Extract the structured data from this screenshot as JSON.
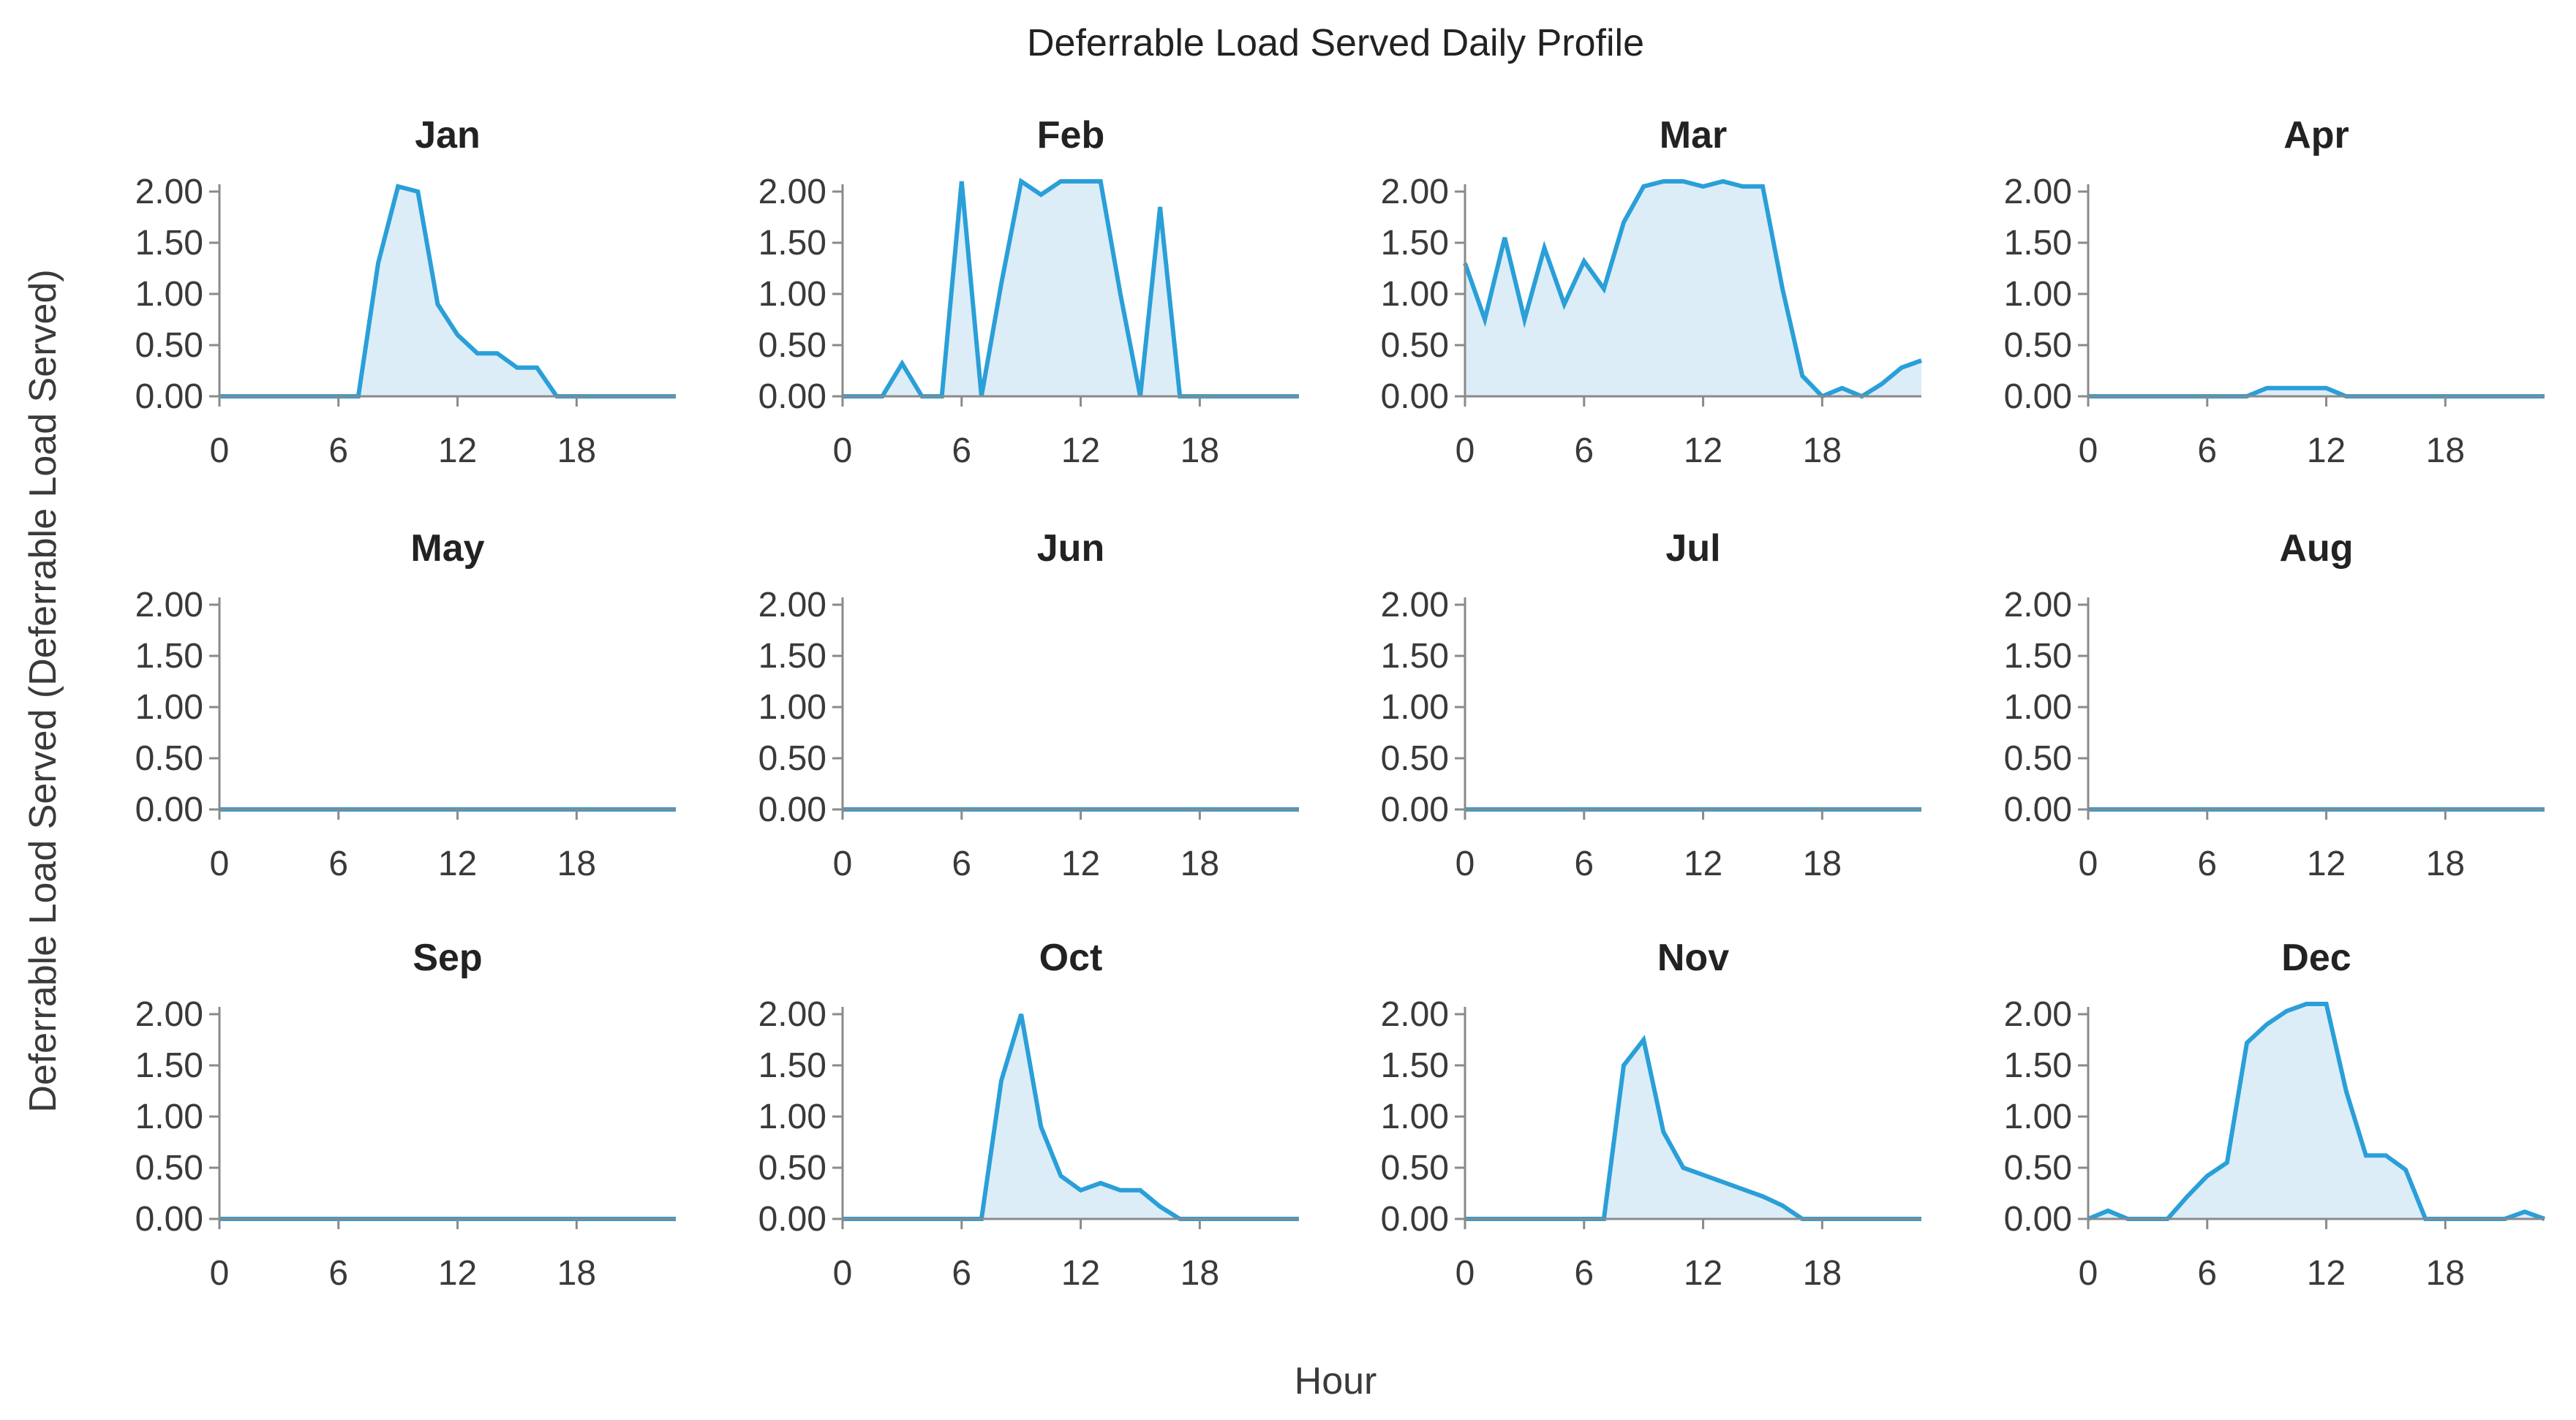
{
  "chart_data": {
    "type": "area",
    "title": "Deferrable Load Served Daily Profile",
    "xlabel": "Hour",
    "ylabel": "Deferrable Load Served (Deferrable Load Served)",
    "xlim": [
      0,
      23
    ],
    "ylim": [
      0,
      2
    ],
    "xticks": [
      0,
      6,
      12,
      18
    ],
    "yticks": [
      0,
      0.5,
      1.0,
      1.5,
      2.0
    ],
    "ytick_labels": [
      "0.00",
      "0.50",
      "1.00",
      "1.50",
      "2.00"
    ],
    "grid": false,
    "series_color": "#2a9fd8",
    "fill_color": "#dcedf8",
    "x": [
      0,
      1,
      2,
      3,
      4,
      5,
      6,
      7,
      8,
      9,
      10,
      11,
      12,
      13,
      14,
      15,
      16,
      17,
      18,
      19,
      20,
      21,
      22,
      23
    ],
    "panels": [
      {
        "name": "Jan",
        "values": [
          0,
          0,
          0,
          0,
          0,
          0,
          0,
          0,
          1.3,
          2.05,
          2.0,
          0.9,
          0.6,
          0.42,
          0.42,
          0.28,
          0.28,
          0,
          0,
          0,
          0,
          0,
          0,
          0
        ]
      },
      {
        "name": "Feb",
        "values": [
          0,
          0,
          0,
          0.32,
          0,
          0,
          2.1,
          0,
          1.1,
          2.1,
          1.97,
          2.1,
          2.1,
          2.1,
          1.0,
          0,
          1.85,
          0,
          0,
          0,
          0,
          0,
          0,
          0
        ]
      },
      {
        "name": "Mar",
        "values": [
          1.3,
          0.75,
          1.55,
          0.75,
          1.45,
          0.9,
          1.32,
          1.05,
          1.7,
          2.05,
          2.1,
          2.1,
          2.05,
          2.1,
          2.05,
          2.05,
          1.05,
          0.2,
          0,
          0.08,
          0,
          0.12,
          0.28,
          0.35
        ]
      },
      {
        "name": "Apr",
        "values": [
          0,
          0,
          0,
          0,
          0,
          0,
          0,
          0,
          0,
          0.08,
          0.08,
          0.08,
          0.08,
          0,
          0,
          0,
          0,
          0,
          0,
          0,
          0,
          0,
          0,
          0
        ]
      },
      {
        "name": "May",
        "values": [
          0,
          0,
          0,
          0,
          0,
          0,
          0,
          0,
          0,
          0,
          0,
          0,
          0,
          0,
          0,
          0,
          0,
          0,
          0,
          0,
          0,
          0,
          0,
          0
        ]
      },
      {
        "name": "Jun",
        "values": [
          0,
          0,
          0,
          0,
          0,
          0,
          0,
          0,
          0,
          0,
          0,
          0,
          0,
          0,
          0,
          0,
          0,
          0,
          0,
          0,
          0,
          0,
          0,
          0
        ]
      },
      {
        "name": "Jul",
        "values": [
          0,
          0,
          0,
          0,
          0,
          0,
          0,
          0,
          0,
          0,
          0,
          0,
          0,
          0,
          0,
          0,
          0,
          0,
          0,
          0,
          0,
          0,
          0,
          0
        ]
      },
      {
        "name": "Aug",
        "values": [
          0,
          0,
          0,
          0,
          0,
          0,
          0,
          0,
          0,
          0,
          0,
          0,
          0,
          0,
          0,
          0,
          0,
          0,
          0,
          0,
          0,
          0,
          0,
          0
        ]
      },
      {
        "name": "Sep",
        "values": [
          0,
          0,
          0,
          0,
          0,
          0,
          0,
          0,
          0,
          0,
          0,
          0,
          0,
          0,
          0,
          0,
          0,
          0,
          0,
          0,
          0,
          0,
          0,
          0
        ]
      },
      {
        "name": "Oct",
        "values": [
          0,
          0,
          0,
          0,
          0,
          0,
          0,
          0,
          1.35,
          2.0,
          0.9,
          0.42,
          0.28,
          0.35,
          0.28,
          0.28,
          0.12,
          0,
          0,
          0,
          0,
          0,
          0,
          0
        ]
      },
      {
        "name": "Nov",
        "values": [
          0,
          0,
          0,
          0,
          0,
          0,
          0,
          0,
          1.5,
          1.75,
          0.85,
          0.5,
          0.43,
          0.36,
          0.29,
          0.22,
          0.13,
          0,
          0,
          0,
          0,
          0,
          0,
          0
        ]
      },
      {
        "name": "Dec",
        "values": [
          0,
          0.08,
          0,
          0,
          0,
          0.22,
          0.42,
          0.55,
          1.72,
          1.9,
          2.03,
          2.1,
          2.1,
          1.25,
          0.62,
          0.62,
          0.48,
          0,
          0,
          0,
          0,
          0,
          0.07,
          0
        ]
      }
    ]
  }
}
